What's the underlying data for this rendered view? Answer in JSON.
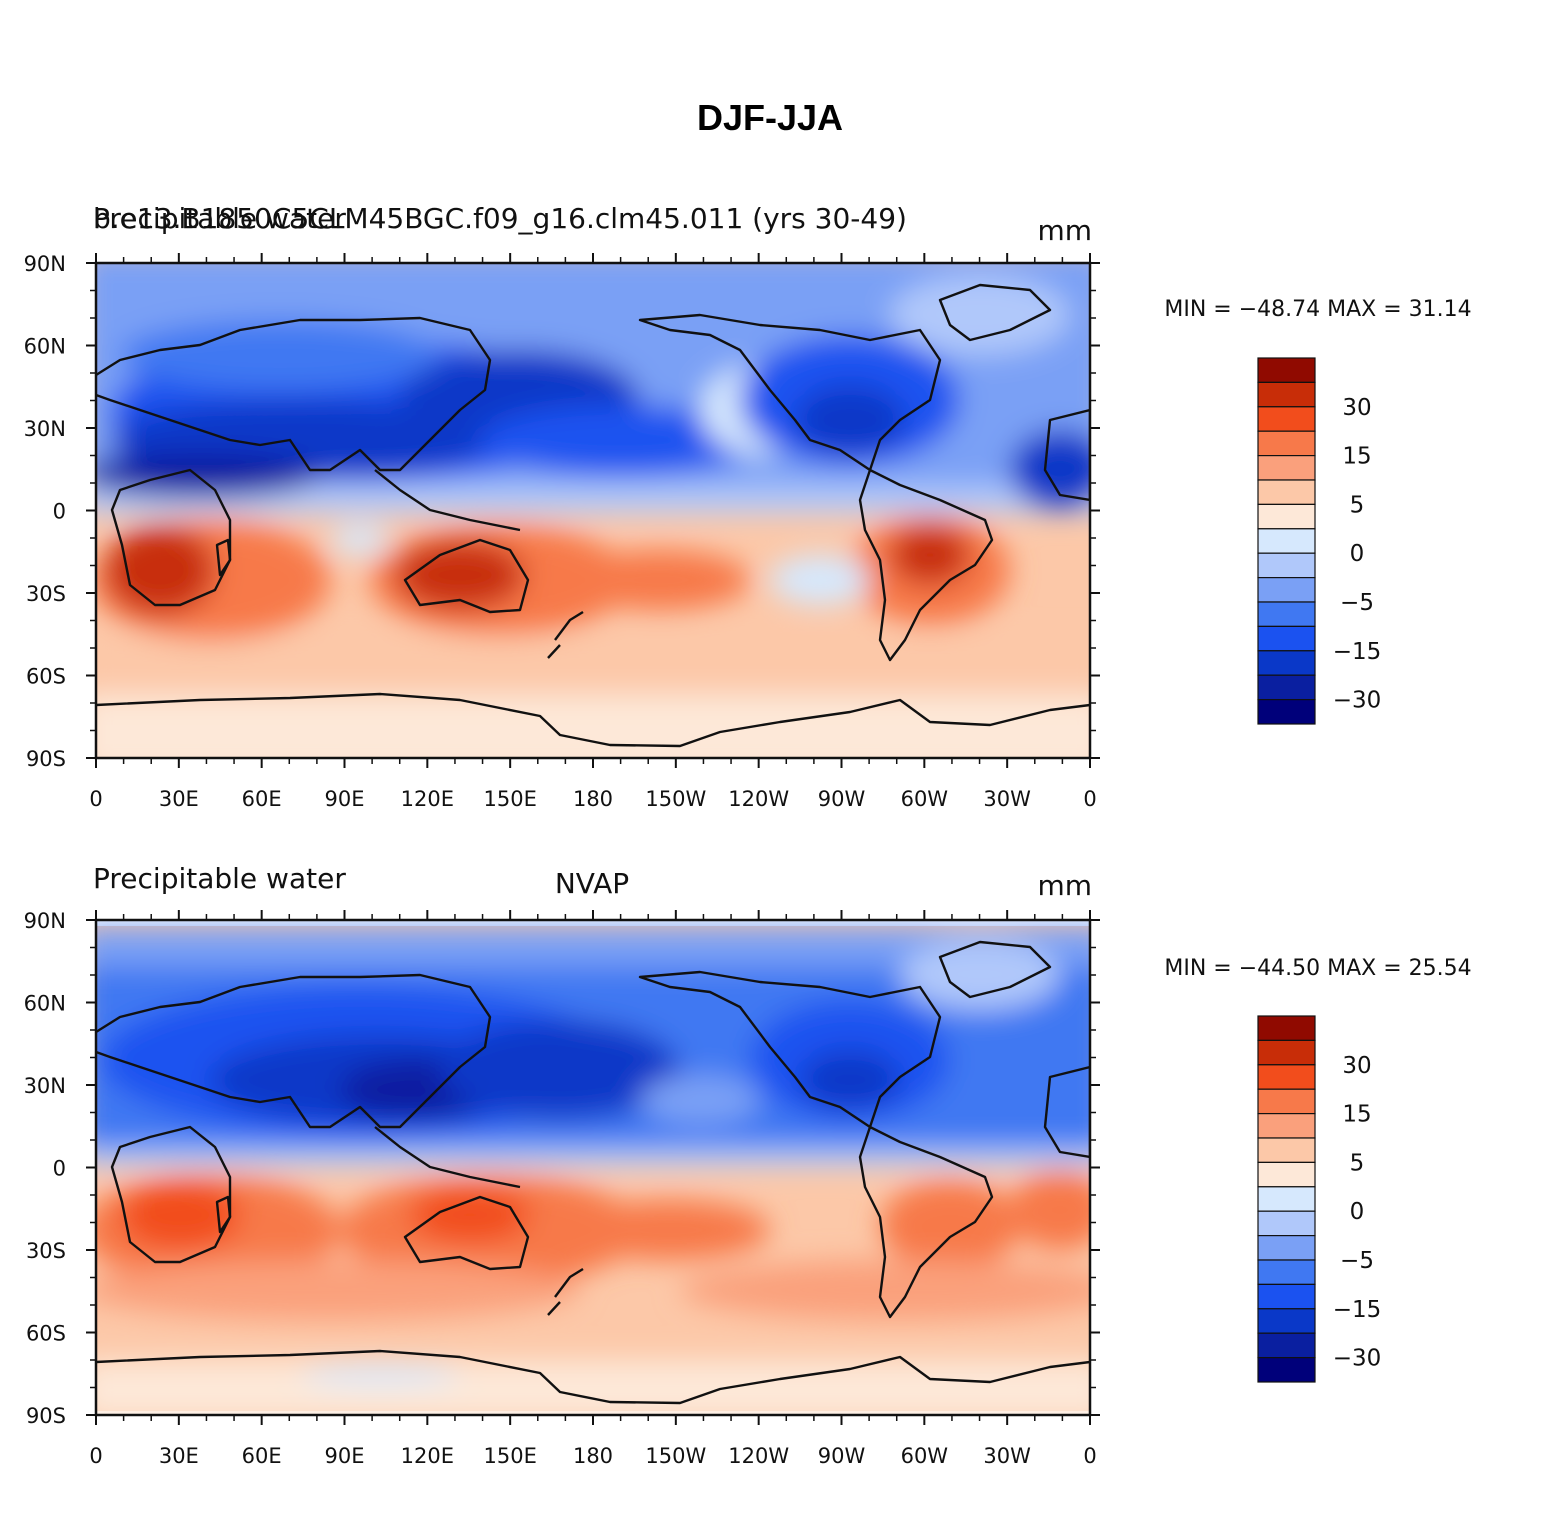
{
  "figure": {
    "title": "DJF-JJA"
  },
  "colors": {
    "levels": [
      "#00007a",
      "#0a1fa0",
      "#0a38c8",
      "#1b52f0",
      "#4078f2",
      "#7aa0f5",
      "#b0c8fa",
      "#d6e8fd",
      "#fde8d8",
      "#fcc8a8",
      "#faa07c",
      "#f7794a",
      "#f24d1c",
      "#c82d08",
      "#900a00"
    ],
    "coast": "#111111"
  },
  "colorbar": {
    "labels": [
      "30",
      "15",
      "5",
      "0",
      "−5",
      "−15",
      "−30"
    ]
  },
  "axes": {
    "x_ticks": [
      "0",
      "30E",
      "60E",
      "90E",
      "120E",
      "150E",
      "180",
      "150W",
      "120W",
      "90W",
      "60W",
      "30W",
      "0"
    ],
    "y_ticks": [
      "90N",
      "60N",
      "30N",
      "0",
      "30S",
      "60S",
      "90S"
    ]
  },
  "panels": [
    {
      "left_label": "Precipitable water",
      "case_label": "b.e13.B1850C5CLM45BGC.f09_g16.clm45.011 (yrs 30-49)",
      "center_label": "",
      "units": "mm",
      "stats": "MIN = −48.74  MAX =   31.14"
    },
    {
      "left_label": "Precipitable water",
      "case_label": "",
      "center_label": "NVAP",
      "units": "mm",
      "stats": "MIN = −44.50  MAX =   25.54"
    }
  ],
  "chart_data": {
    "type": "heatmap",
    "title": "DJF-JJA",
    "projection": "cylindrical equidistant",
    "xlim": [
      0,
      360
    ],
    "ylim": [
      -90,
      90
    ],
    "contour_levels": [
      -30,
      -15,
      -5,
      0,
      5,
      15,
      30
    ],
    "panels": [
      {
        "name": "b.e13.B1850C5CLM45BGC.f09_g16.clm45.011 (yrs 30-49)",
        "variable": "Precipitable water",
        "units": "mm",
        "min": -48.74,
        "max": 31.14
      },
      {
        "name": "NVAP",
        "variable": "Precipitable water",
        "units": "mm",
        "min": -44.5,
        "max": 25.54
      }
    ]
  }
}
